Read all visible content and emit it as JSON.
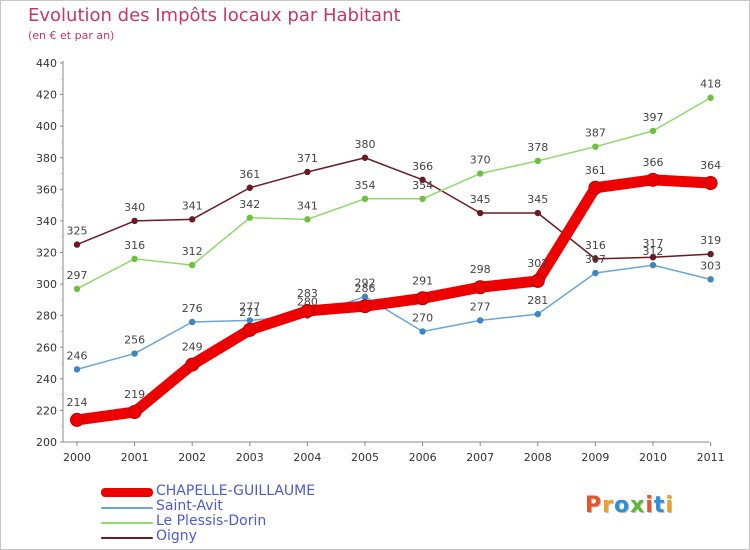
{
  "header": {
    "title": "Evolution des Impôts locaux par Habitant",
    "subtitle": "(en € et par an)"
  },
  "logo": {
    "text": "Proxiti",
    "colors": [
      "#e8542a",
      "#f0a020",
      "#2f8fd6",
      "#5cb83a",
      "#e8542a",
      "#2f8fd6",
      "#f0a020"
    ]
  },
  "chart_data": {
    "type": "line",
    "title": "Evolution des Impôts locaux par Habitant",
    "subtitle": "(en € et par an)",
    "xlabel": "",
    "ylabel": "",
    "x": [
      "2000",
      "2001",
      "2002",
      "2003",
      "2004",
      "2005",
      "2006",
      "2007",
      "2008",
      "2009",
      "2010",
      "2011"
    ],
    "ylim": [
      200,
      440
    ],
    "yticks": [
      200,
      220,
      240,
      260,
      280,
      300,
      320,
      340,
      360,
      380,
      400,
      420,
      440
    ],
    "grid": false,
    "legend_position": "bottom-left",
    "series": [
      {
        "name": "Oigny",
        "color": "#6b1a22",
        "marker": "#6b1a22",
        "thick": false,
        "values": [
          325,
          340,
          341,
          361,
          371,
          380,
          366,
          345,
          345,
          316,
          317,
          319
        ],
        "labels": [
          "325",
          "340",
          "341",
          "361",
          "371",
          "380",
          "366",
          "345",
          "345",
          "316",
          "317",
          "319"
        ]
      },
      {
        "name": "Le Plessis-Dorin",
        "color": "#8fd96a",
        "marker": "#6cc23f",
        "thick": false,
        "values": [
          297,
          316,
          312,
          342,
          341,
          354,
          354,
          370,
          378,
          387,
          397,
          418
        ],
        "labels": [
          "297",
          "316",
          "312",
          "342",
          "341",
          "354",
          "354",
          "370",
          "378",
          "387",
          "397",
          "418"
        ]
      },
      {
        "name": "Saint-Avit",
        "color": "#6aa6d8",
        "marker": "#3d86c6",
        "thick": false,
        "values": [
          246,
          256,
          276,
          277,
          280,
          292,
          270,
          277,
          281,
          307,
          312,
          303
        ],
        "labels": [
          "246",
          "256",
          "276",
          "277",
          "280",
          "292",
          "270",
          "277",
          "281",
          "307",
          "312",
          "303"
        ]
      },
      {
        "name": "CHAPELLE-GUILLAUME",
        "color": "#ee0000",
        "marker": "#ee0000",
        "thick": true,
        "values": [
          214,
          219,
          249,
          271,
          283,
          286,
          291,
          298,
          302,
          361,
          366,
          364
        ],
        "labels": [
          "214",
          "219",
          "249",
          "271",
          "283",
          "286",
          "291",
          "298",
          "302",
          "361",
          "366",
          "364"
        ]
      }
    ],
    "legend": [
      {
        "name": "CHAPELLE-GUILLAUME",
        "color": "#ee0000",
        "thick": true
      },
      {
        "name": "Saint-Avit",
        "color": "#6aa6d8",
        "thick": false
      },
      {
        "name": "Le Plessis-Dorin",
        "color": "#8fd96a",
        "thick": false
      },
      {
        "name": "Oigny",
        "color": "#6b1a22",
        "thick": false
      }
    ]
  }
}
